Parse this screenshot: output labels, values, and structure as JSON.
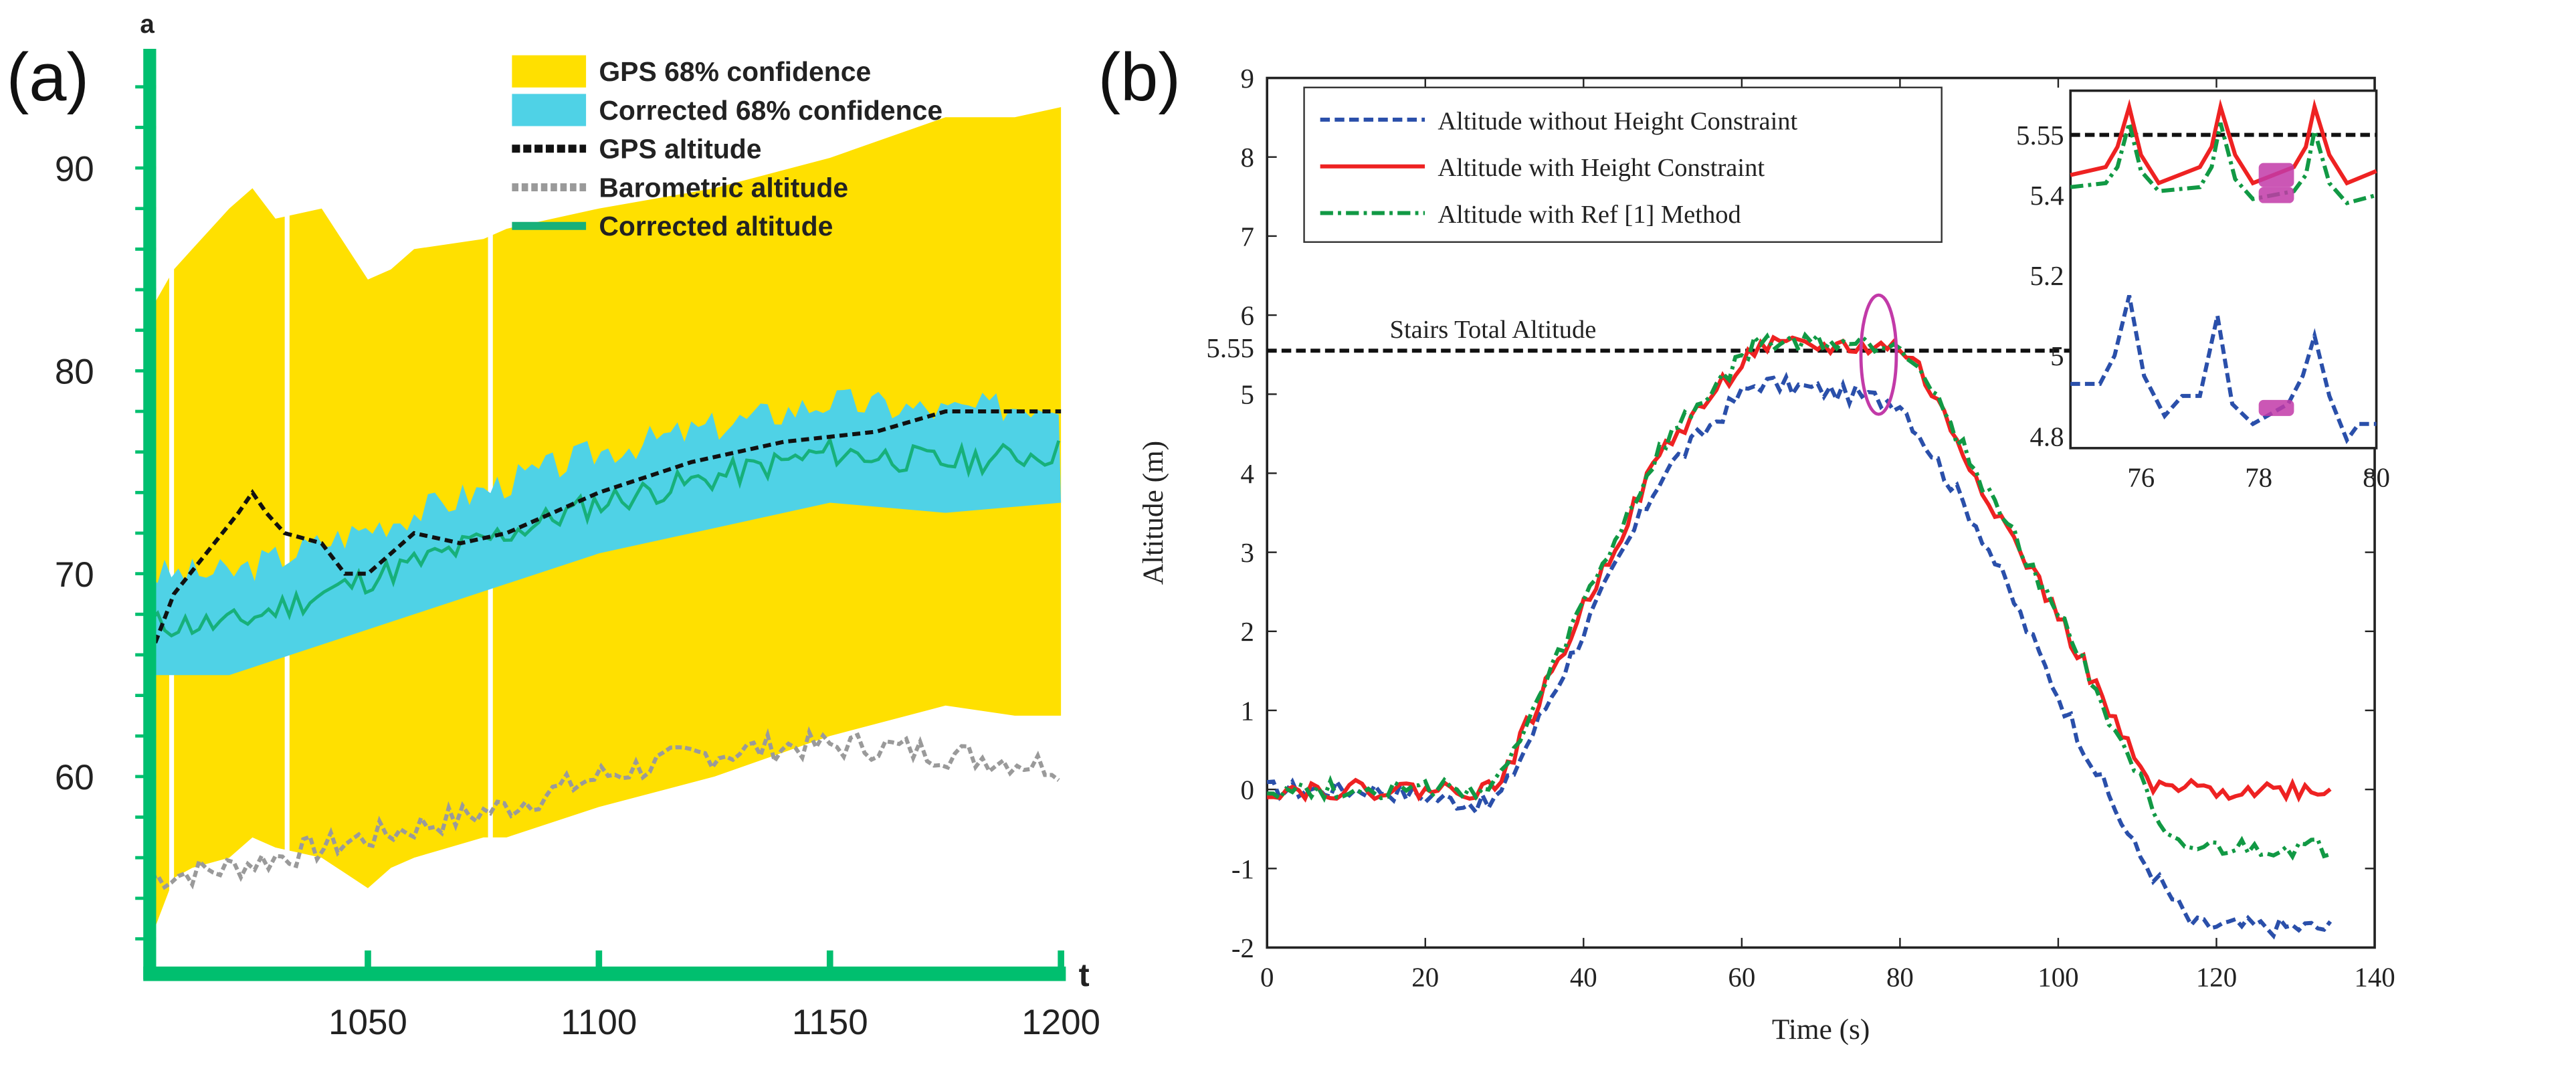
{
  "chart_data": [
    {
      "panel_label": "(a)",
      "type": "line",
      "xlabel": "t",
      "ylabel": "a",
      "xlim": [
        1000,
        1205
      ],
      "ylim": [
        51,
        96
      ],
      "xticks": [
        1050,
        1100,
        1150,
        1200
      ],
      "yticks": [
        60,
        70,
        80,
        90
      ],
      "grid": false,
      "legend_position": "top-right",
      "colors": {
        "gps_band": "#FFE000",
        "corrected_band": "#4FD2E6",
        "gps": "#111111",
        "baro": "#9A9A9A",
        "corrected": "#17B07A",
        "axis": "#00BF6F"
      },
      "legend": [
        "GPS 68% confidence",
        "Corrected 68% confidence",
        "GPS altitude",
        "Barometric altitude",
        "Corrected altitude"
      ],
      "gps_band": {
        "x": [
          1003,
          1008,
          1012,
          1020,
          1025,
          1030,
          1040,
          1050,
          1055,
          1060,
          1075,
          1080,
          1100,
          1125,
          1150,
          1175,
          1190,
          1200
        ],
        "upper": [
          83,
          85,
          86,
          88,
          89,
          87.5,
          88,
          84.5,
          85,
          86,
          86.5,
          87,
          88,
          89,
          90.5,
          92.5,
          92.5,
          93
        ],
        "lower": [
          52,
          55,
          55.5,
          56,
          57,
          56.5,
          56,
          54.5,
          55.5,
          56,
          57,
          57,
          58.5,
          60,
          62,
          63.5,
          63,
          63
        ]
      },
      "corrected_band": {
        "x": [
          1003,
          1020,
          1040,
          1060,
          1080,
          1100,
          1130,
          1150,
          1175,
          1200
        ],
        "upper": [
          70,
          70,
          71.5,
          73,
          74.5,
          76,
          77.5,
          78.5,
          78,
          78.5
        ],
        "lower": [
          65,
          65,
          66.5,
          68,
          69.5,
          71,
          72.5,
          73.5,
          73,
          73.5
        ]
      },
      "series": [
        {
          "name": "GPS altitude",
          "x": [
            1003,
            1008,
            1015,
            1022,
            1025,
            1028,
            1032,
            1040,
            1045,
            1050,
            1060,
            1070,
            1080,
            1100,
            1120,
            1140,
            1160,
            1175,
            1190,
            1200
          ],
          "y": [
            66,
            69,
            71,
            73,
            74,
            73,
            72,
            71.5,
            70,
            70,
            72,
            71.5,
            72,
            74,
            75.5,
            76.5,
            77,
            78,
            78,
            78
          ]
        },
        {
          "name": "Barometric altitude",
          "x": [
            1003,
            1020,
            1040,
            1060,
            1080,
            1100,
            1120,
            1140,
            1160,
            1180,
            1200
          ],
          "y": [
            55,
            55.5,
            56.5,
            57.5,
            58.5,
            60,
            61,
            61.5,
            61.5,
            61,
            60.5
          ]
        },
        {
          "name": "Corrected altitude",
          "x": [
            1003,
            1020,
            1040,
            1060,
            1080,
            1100,
            1130,
            1150,
            1175,
            1200
          ],
          "y": [
            67.5,
            67.5,
            69,
            70.5,
            72,
            73.5,
            75,
            76,
            75.5,
            76
          ]
        }
      ]
    },
    {
      "panel_label": "(b)",
      "type": "line",
      "xlabel": "Time (s)",
      "ylabel": "Altitude (m)",
      "xlim": [
        0,
        140
      ],
      "ylim": [
        -2,
        9
      ],
      "xticks": [
        0,
        20,
        40,
        60,
        80,
        100,
        120,
        140
      ],
      "yticks": [
        -2,
        -1,
        0,
        1,
        2,
        3,
        4,
        5,
        6,
        7,
        8,
        9
      ],
      "extra_ytick": "5.55",
      "grid": false,
      "legend_position": "top-left",
      "reference_line": {
        "label": "Stairs Total Altitude",
        "y": 5.55,
        "color": "#111111"
      },
      "highlight_color": "#C23AA8",
      "series": [
        {
          "name": "Altitude without Height Constraint",
          "color": "#2A4FAA",
          "style": "dashed",
          "x": [
            0,
            14,
            28,
            30,
            40,
            50,
            60,
            62,
            70,
            80,
            90,
            100,
            110,
            117,
            135
          ],
          "y": [
            0,
            0,
            -0.2,
            0,
            2,
            4,
            5,
            5.15,
            5.05,
            4.9,
            3.3,
            1.2,
            -0.8,
            -1.72,
            -1.75
          ]
        },
        {
          "name": "Altitude with Height Constraint",
          "color": "#EE2222",
          "style": "solid",
          "x": [
            0,
            14,
            28,
            30,
            40,
            50,
            60,
            62,
            70,
            80,
            82,
            90,
            100,
            110,
            112,
            135
          ],
          "y": [
            0,
            0,
            0,
            0.2,
            2.3,
            4.3,
            5.4,
            5.6,
            5.6,
            5.6,
            5.4,
            3.9,
            2.2,
            0.3,
            0,
            0
          ]
        },
        {
          "name": "Altitude with Ref [1] Method",
          "color": "#119944",
          "style": "dashdot",
          "x": [
            0,
            14,
            28,
            30,
            40,
            50,
            60,
            62,
            70,
            80,
            82,
            90,
            100,
            110,
            113,
            115,
            135
          ],
          "y": [
            0,
            0,
            0,
            0.2,
            2.35,
            4.35,
            5.45,
            5.65,
            5.65,
            5.62,
            5.45,
            3.95,
            2.25,
            0.2,
            -0.6,
            -0.75,
            -0.75
          ]
        }
      ],
      "inset": {
        "xlim": [
          74.8,
          80
        ],
        "ylim": [
          4.77,
          5.66
        ],
        "xticks": [
          76,
          78,
          80
        ],
        "yticks": [
          4.8,
          5,
          5.2,
          5.4
        ],
        "ytick_labels": [
          "4.8",
          "5",
          "5.2",
          "5.4",
          "5.55"
        ],
        "reference_y": 5.55,
        "series": [
          {
            "name": "Altitude with Height Constraint",
            "x": [
              74.8,
              75.4,
              75.6,
              75.8,
              76.0,
              76.3,
              77.0,
              77.2,
              77.35,
              77.6,
              77.9,
              78.6,
              78.8,
              78.95,
              79.2,
              79.5,
              80
            ],
            "y": [
              5.45,
              5.47,
              5.52,
              5.62,
              5.5,
              5.43,
              5.47,
              5.52,
              5.62,
              5.5,
              5.43,
              5.47,
              5.52,
              5.62,
              5.5,
              5.43,
              5.46
            ]
          },
          {
            "name": "Altitude with Ref [1] Method",
            "x": [
              74.8,
              75.4,
              75.6,
              75.8,
              76.0,
              76.3,
              77.0,
              77.2,
              77.35,
              77.6,
              77.9,
              78.6,
              78.8,
              78.95,
              79.2,
              79.5,
              80
            ],
            "y": [
              5.42,
              5.43,
              5.47,
              5.58,
              5.46,
              5.41,
              5.42,
              5.47,
              5.58,
              5.44,
              5.39,
              5.41,
              5.45,
              5.56,
              5.43,
              5.38,
              5.4
            ]
          },
          {
            "name": "Altitude without Height Constraint",
            "x": [
              74.8,
              75.3,
              75.55,
              75.8,
              76.05,
              76.4,
              76.7,
              77.0,
              77.3,
              77.55,
              77.9,
              78.5,
              78.75,
              78.95,
              79.2,
              79.5,
              79.7,
              80
            ],
            "y": [
              4.93,
              4.93,
              5.0,
              5.15,
              4.95,
              4.85,
              4.9,
              4.9,
              5.1,
              4.88,
              4.83,
              4.88,
              4.95,
              5.05,
              4.9,
              4.79,
              4.83,
              4.83
            ]
          }
        ],
        "highlights": [
          {
            "x": [
              78,
              78.6
            ],
            "y": [
              5.42,
              5.48
            ]
          },
          {
            "x": [
              78,
              78.6
            ],
            "y": [
              5.38,
              5.42
            ]
          },
          {
            "x": [
              78,
              78.6
            ],
            "y": [
              4.85,
              4.89
            ]
          }
        ]
      }
    }
  ]
}
